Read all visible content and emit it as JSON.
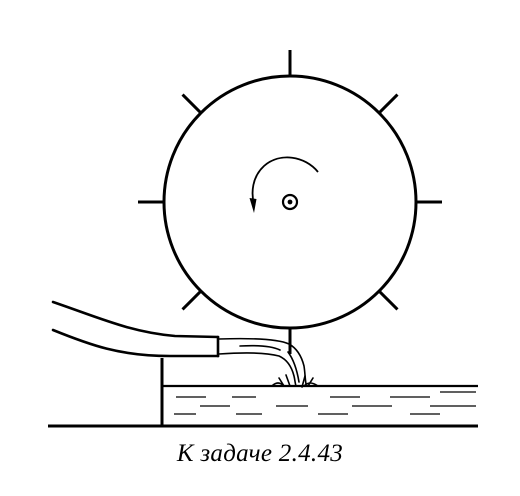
{
  "caption": "К задаче 2.4.43",
  "colors": {
    "ink": "#000000",
    "paper": "#ffffff"
  },
  "figure": {
    "wheel": {
      "paddle_count": 8,
      "rotation": "counterclockwise",
      "has_axle": true
    },
    "chute": {
      "present": true
    },
    "water_jet": {
      "present": true
    },
    "reservoir": {
      "present": true
    }
  }
}
